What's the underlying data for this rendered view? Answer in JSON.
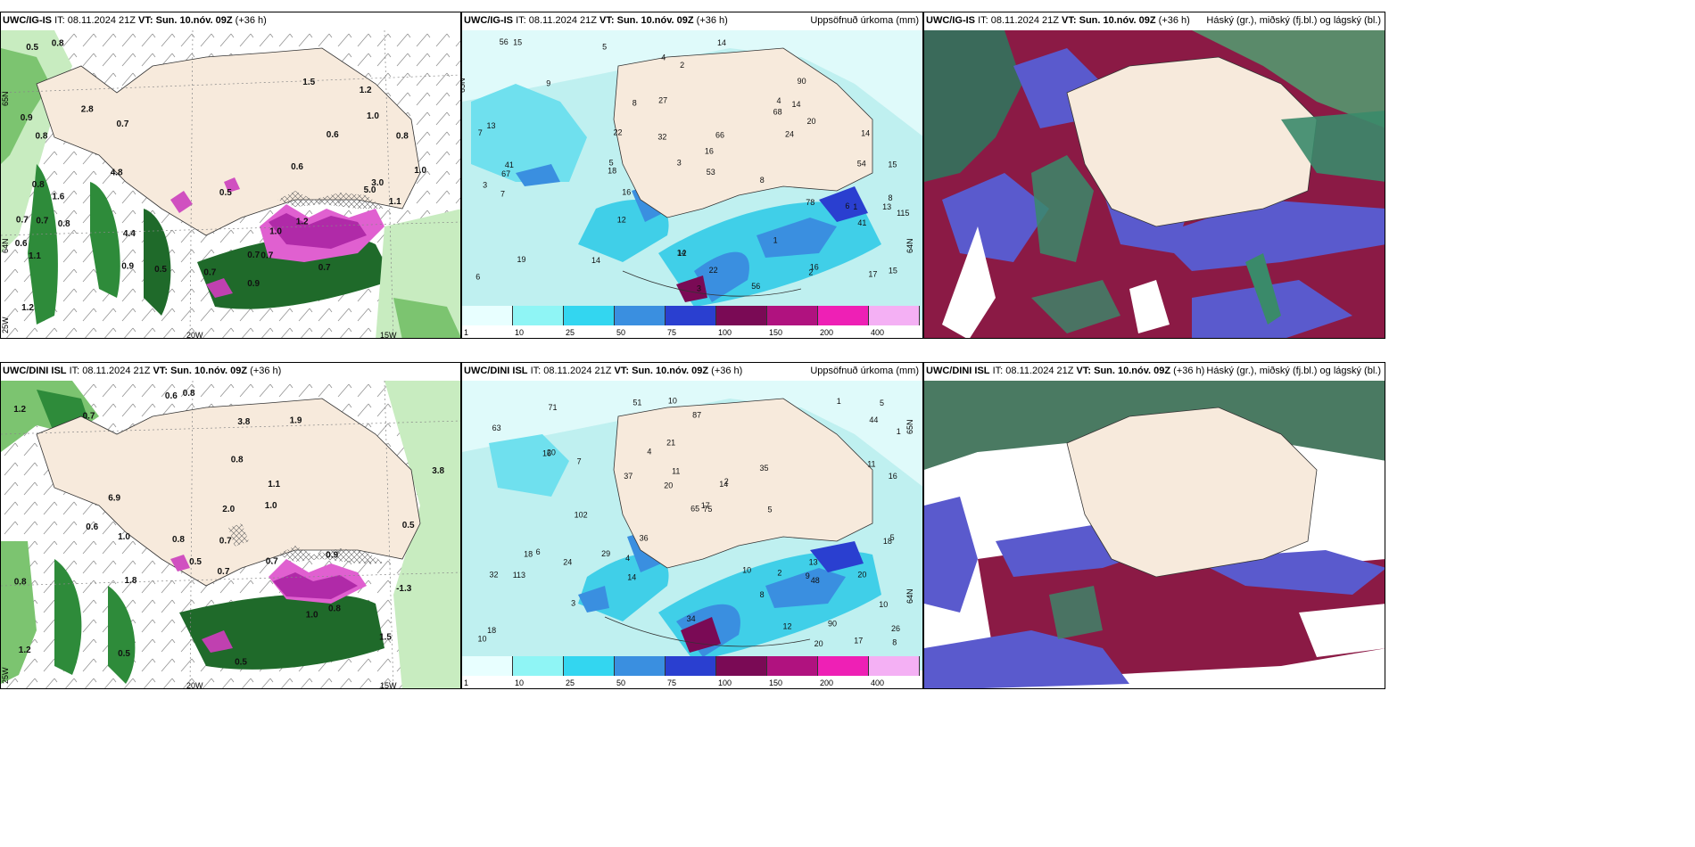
{
  "panels": [
    {
      "id": "p1",
      "title_model": "UWC/IG-IS",
      "title_it": "IT: 08.11.2024 21Z",
      "title_vt": "VT: Sun. 10.nóv. 09Z",
      "title_lead": "(+36 h)",
      "right": ""
    },
    {
      "id": "p2",
      "title_model": "UWC/IG-IS",
      "title_it": "IT: 08.11.2024 21Z",
      "title_vt": "VT: Sun. 10.nóv. 09Z",
      "title_lead": "(+36 h)",
      "right": "Uppsöfnuð úrkoma (mm)"
    },
    {
      "id": "p3",
      "title_model": "UWC/IG-IS",
      "title_it": "IT: 08.11.2024 21Z",
      "title_vt": "VT: Sun. 10.nóv. 09Z",
      "title_lead": "(+36 h)",
      "right": "Háský (gr.), miðský (fj.bl.) og lágský (bl.)"
    },
    {
      "id": "p4",
      "title_model": "UWC/DINI ISL",
      "title_it": "IT: 08.11.2024 21Z",
      "title_vt": "VT: Sun. 10.nóv. 09Z",
      "title_lead": "(+36 h)",
      "right": ""
    },
    {
      "id": "p5",
      "title_model": "UWC/DINI ISL",
      "title_it": "IT: 08.11.2024 21Z",
      "title_vt": "VT: Sun. 10.nóv. 09Z",
      "title_lead": "(+36 h)",
      "right": "Uppsöfnuð úrkoma (mm)"
    },
    {
      "id": "p6",
      "title_model": "UWC/DINI ISL",
      "title_it": "IT: 08.11.2024 21Z",
      "title_vt": "VT: Sun. 10.nóv. 09Z",
      "title_lead": "(+36 h)",
      "right": "Háský (gr.), miðský (fj.bl.) og lágský (bl.)"
    }
  ],
  "grid_labels": {
    "lat_65": "65N",
    "lat_64": "64N",
    "lon_20": "20W",
    "lon_15": "15W",
    "lon_25": "25W"
  },
  "colorbar": {
    "ticks": [
      "1",
      "10",
      "25",
      "50",
      "75",
      "100",
      "150",
      "200",
      "400"
    ],
    "colors": [
      "#e8ffff",
      "#8ff5f5",
      "#33d6f0",
      "#3a8fe0",
      "#2a3fd0",
      "#7a0a55",
      "#b0127f",
      "#ee20b5",
      "#f4b0f4"
    ]
  },
  "colors": {
    "land": "#f7eadc",
    "precip_light": "#bff0f0",
    "precip_mid": "#40cfe8",
    "cloud_low": "#8b1a45",
    "cloud_mid": "#5a5acd",
    "cloud_high": "#3a8a6a",
    "temp_green": "#1f7a2a"
  },
  "labels_p1": [
    "0.8",
    "0.5",
    "0.7",
    "1.1",
    "0.8",
    "0.5",
    "0.7",
    "0.6",
    "0.5",
    "0.7",
    "1.0",
    "0.8",
    "0.9",
    "0.6",
    "1.5",
    "1.0",
    "0.7",
    "0.9",
    "0.8",
    "1.2",
    "2.8",
    "1.6",
    "0.7",
    "1.2",
    "4.8",
    "3.0",
    "1.1",
    "0.7",
    "0.6",
    "1.0",
    "0.9",
    "1.2",
    "0.8",
    "4.4",
    "5.0",
    "0.7"
  ],
  "labels_p2": [
    "15",
    "14",
    "5",
    "3",
    "2",
    "1",
    "1",
    "2",
    "8",
    "16",
    "6",
    "4",
    "5",
    "3",
    "22",
    "12",
    "8",
    "18",
    "13",
    "14",
    "67",
    "56",
    "56",
    "78",
    "41",
    "20",
    "27",
    "16",
    "15",
    "12",
    "19",
    "53",
    "16",
    "22",
    "32",
    "14",
    "15",
    "17",
    "13",
    "9",
    "7",
    "7",
    "8",
    "3",
    "4",
    "6",
    "14",
    "14",
    "24",
    "41",
    "54",
    "66",
    "68",
    "90",
    "115"
  ],
  "labels_p4": [
    "0.8",
    "0.9",
    "0.6",
    "1.0",
    "0.8",
    "1.8",
    "0.6",
    "1.0",
    "1.2",
    "0.8",
    "0.7",
    "0.5",
    "1.5",
    "2.0",
    "0.7",
    "-1.3",
    "0.5",
    "0.7",
    "0.5",
    "0.8",
    "6.9",
    "1.9",
    "1.0",
    "0.8",
    "0.7",
    "1.2",
    "0.5",
    "1.1",
    "3.8",
    "3.8"
  ],
  "labels_p5": [
    "18",
    "13",
    "9",
    "8",
    "10",
    "5",
    "4",
    "2",
    "3",
    "1",
    "35",
    "36",
    "34",
    "12",
    "6",
    "16",
    "20",
    "10",
    "11",
    "16",
    "17",
    "18",
    "63",
    "71",
    "48",
    "102",
    "113",
    "65",
    "37",
    "75",
    "87",
    "90",
    "51",
    "44",
    "32",
    "24",
    "20",
    "29",
    "8",
    "10",
    "14",
    "20",
    "21",
    "17",
    "26",
    "18",
    "11",
    "14",
    "20",
    "10",
    "5",
    "4",
    "7",
    "5",
    "2",
    "1"
  ],
  "labels_p3": [],
  "labels_p6": []
}
